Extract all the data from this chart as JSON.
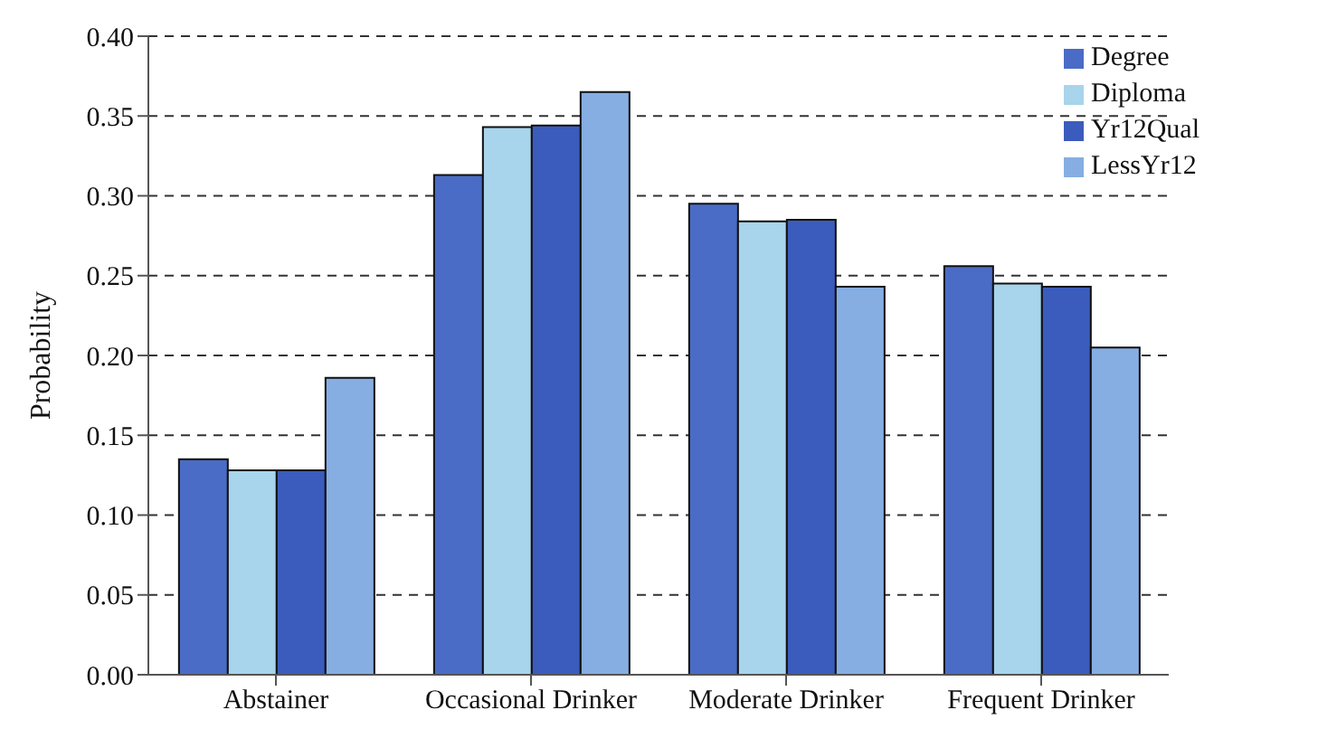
{
  "chart_data": {
    "type": "bar",
    "ylabel": "Probability",
    "categories": [
      "Abstainer",
      "Occasional Drinker",
      "Moderate Drinker",
      "Frequent Drinker"
    ],
    "series": [
      {
        "name": "Degree",
        "color": "#4a6cc6",
        "values": [
          0.135,
          0.313,
          0.295,
          0.256
        ]
      },
      {
        "name": "Diploma",
        "color": "#a8d4ec",
        "values": [
          0.128,
          0.343,
          0.284,
          0.245
        ]
      },
      {
        "name": "Yr12Qual",
        "color": "#3b5cbc",
        "values": [
          0.128,
          0.344,
          0.285,
          0.243
        ]
      },
      {
        "name": "LessYr12",
        "color": "#86aee2",
        "values": [
          0.186,
          0.365,
          0.243,
          0.205
        ]
      }
    ],
    "ylim": [
      0,
      0.4
    ],
    "yticks": [
      {
        "value": 0,
        "label": "0.00"
      },
      {
        "value": 0.05,
        "label": "0.05"
      },
      {
        "value": 0.1,
        "label": "0.10"
      },
      {
        "value": 0.15,
        "label": "0.15"
      },
      {
        "value": 0.2,
        "label": "0.20"
      },
      {
        "value": 0.25,
        "label": "0.25"
      },
      {
        "value": 0.3,
        "label": "0.30"
      },
      {
        "value": 0.35,
        "label": "0.35"
      },
      {
        "value": 0.4,
        "label": "0.40"
      }
    ],
    "grid": "y",
    "legend": "top right"
  }
}
